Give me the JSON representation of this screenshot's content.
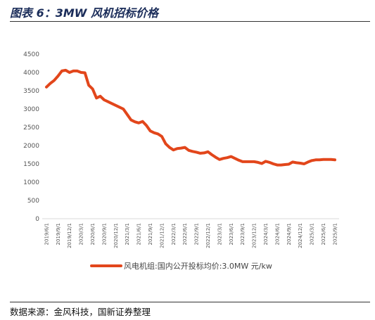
{
  "figure": {
    "title": "图表 6：3MW 风机招标价格",
    "source": "数据来源：金风科技，国新证券整理"
  },
  "colors": {
    "series": "#e2461b",
    "axis": "#d9d9d9",
    "text": "#555555"
  },
  "chart_data": {
    "type": "line",
    "title": "",
    "xlabel": "",
    "ylabel": "",
    "ylim": [
      0,
      4500
    ],
    "yticks": [
      "0",
      "500",
      "1000",
      "1500",
      "2000",
      "2500",
      "3000",
      "3500",
      "4000",
      "4500"
    ],
    "x_ticks": [
      "2019/6/1",
      "2019/9/1",
      "2019/12/1",
      "2020/3/1",
      "2020/6/1",
      "2020/9/1",
      "2020/12/1",
      "2021/3/1",
      "2021/6/1",
      "2021/9/1",
      "2021/12/1",
      "2022/3/1",
      "2022/6/1",
      "2022/9/1",
      "2022/12/1",
      "2023/3/1",
      "2023/6/1",
      "2023/9/1",
      "2023/12/1",
      "2024/3/1",
      "2024/6/1",
      "2024/9/1",
      "2024/12/1",
      "2025/3/1",
      "2025/6/1",
      "2025/9/1"
    ],
    "grid": false,
    "legend_position": "bottom",
    "series": [
      {
        "name": "风电机组:国内公开投标均价:3.0MW 元/kw",
        "x": [
          "2019/6/1",
          "2019/7/1",
          "2019/8/1",
          "2019/9/1",
          "2019/10/1",
          "2019/11/1",
          "2019/12/1",
          "2020/1/1",
          "2020/2/1",
          "2020/3/1",
          "2020/4/1",
          "2020/5/1",
          "2020/6/1",
          "2020/7/1",
          "2020/8/1",
          "2020/9/1",
          "2020/10/1",
          "2020/11/1",
          "2020/12/1",
          "2021/1/1",
          "2021/2/1",
          "2021/3/1",
          "2021/4/1",
          "2021/5/1",
          "2021/6/1",
          "2021/7/1",
          "2021/8/1",
          "2021/9/1",
          "2021/10/1",
          "2021/11/1",
          "2021/12/1",
          "2022/1/1",
          "2022/2/1",
          "2022/3/1",
          "2022/4/1",
          "2022/5/1",
          "2022/6/1",
          "2022/7/1",
          "2022/8/1",
          "2022/9/1",
          "2022/10/1",
          "2022/11/1",
          "2022/12/1",
          "2023/1/1",
          "2023/2/1",
          "2023/3/1",
          "2023/4/1",
          "2023/5/1",
          "2023/6/1",
          "2023/7/1",
          "2023/8/1",
          "2023/9/1",
          "2023/10/1",
          "2023/11/1",
          "2023/12/1",
          "2024/1/1",
          "2024/2/1",
          "2024/3/1",
          "2024/4/1",
          "2024/5/1",
          "2024/6/1",
          "2024/7/1",
          "2024/8/1",
          "2024/9/1",
          "2024/10/1",
          "2024/11/1",
          "2024/12/1",
          "2025/1/1",
          "2025/2/1",
          "2025/3/1",
          "2025/4/1",
          "2025/5/1",
          "2025/6/1",
          "2025/7/1",
          "2025/8/1",
          "2025/9/1"
        ],
        "values": [
          3600,
          3700,
          3780,
          3900,
          4040,
          4060,
          4000,
          4040,
          4040,
          4000,
          3990,
          3650,
          3550,
          3300,
          3350,
          3250,
          3200,
          3150,
          3100,
          3050,
          3000,
          2850,
          2700,
          2650,
          2620,
          2660,
          2550,
          2400,
          2350,
          2320,
          2250,
          2050,
          1950,
          1880,
          1920,
          1930,
          1950,
          1870,
          1840,
          1820,
          1790,
          1800,
          1830,
          1750,
          1680,
          1620,
          1650,
          1670,
          1700,
          1650,
          1600,
          1560,
          1560,
          1560,
          1560,
          1540,
          1510,
          1570,
          1540,
          1500,
          1470,
          1470,
          1480,
          1490,
          1550,
          1530,
          1520,
          1500,
          1550,
          1590,
          1610,
          1610,
          1620,
          1620,
          1620,
          1610
        ]
      }
    ]
  }
}
